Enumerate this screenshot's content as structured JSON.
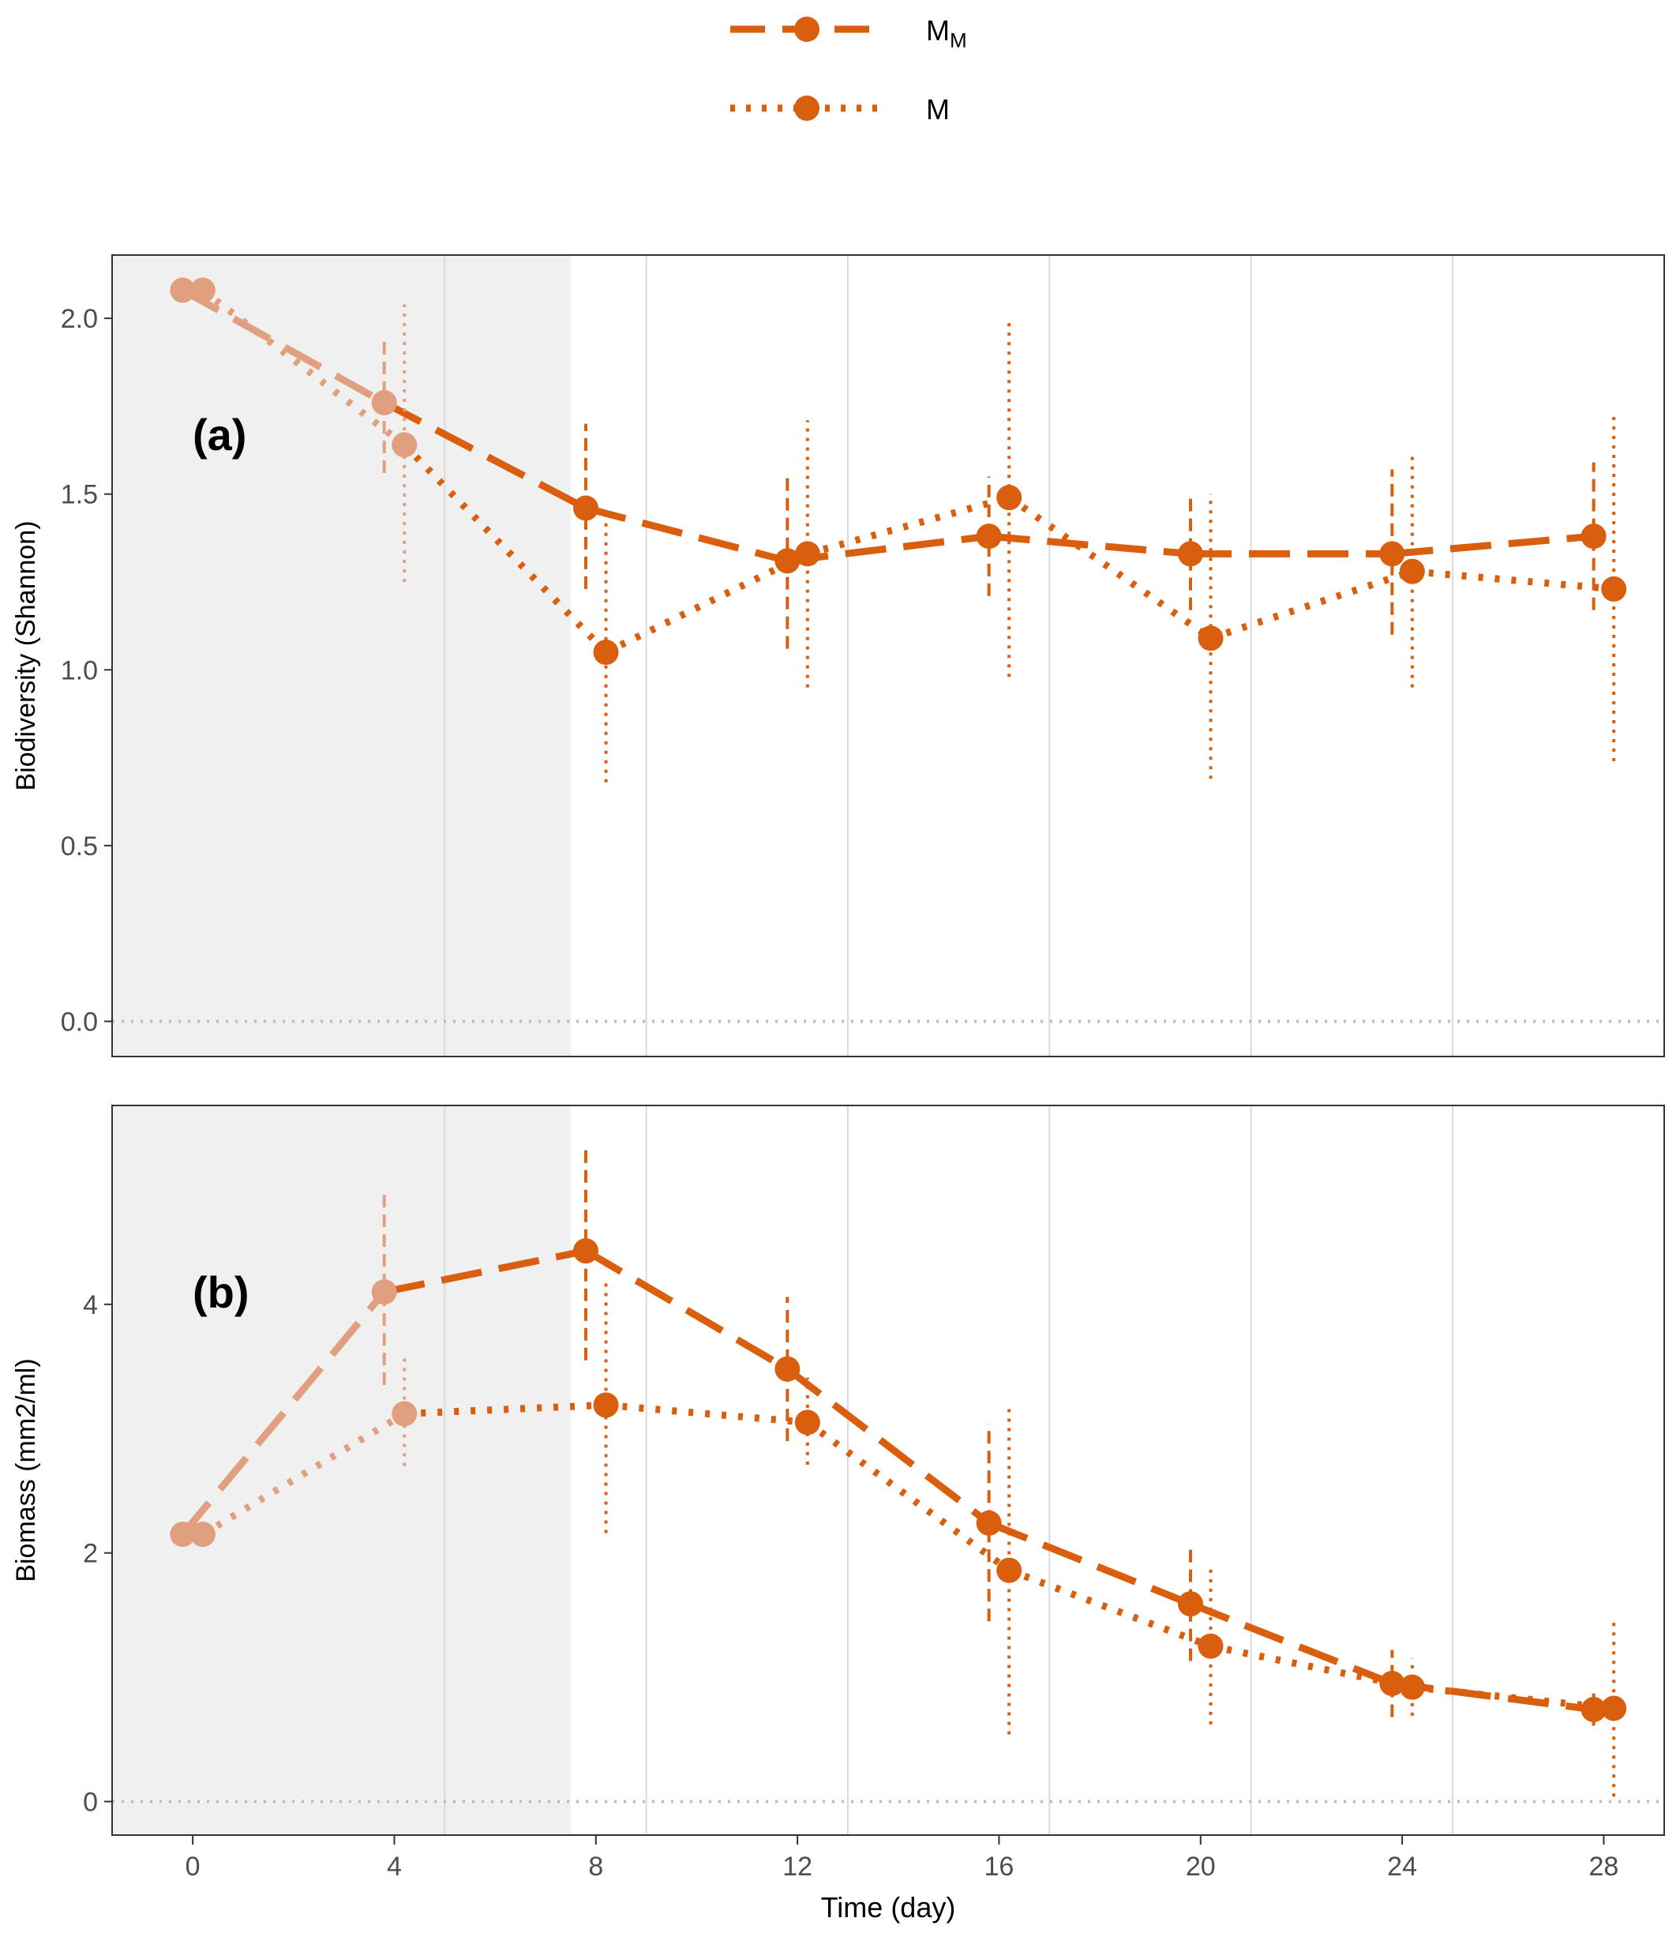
{
  "legend": {
    "items": [
      {
        "label": "M",
        "subscript": "M",
        "style": "dashed"
      },
      {
        "label": "M",
        "subscript": "",
        "style": "dotted"
      }
    ]
  },
  "colors": {
    "series": "#D95F0E",
    "shaded_series": "#E0A07F",
    "shaded_region": "#F0F0F0",
    "grid": "#D9D9D9",
    "zero_line": "#BDBDBD",
    "axis_text": "#4D4D4D"
  },
  "x_axis": {
    "label": "Time (day)",
    "ticks": [
      0,
      4,
      8,
      12,
      16,
      20,
      24,
      28
    ],
    "range": [
      -1.6,
      29.2
    ]
  },
  "chart_data": [
    {
      "type": "line",
      "panel_label": "(a)",
      "ylabel": "Biodiversity (Shannon)",
      "ylim": [
        -0.1,
        2.18
      ],
      "yticks": [
        0.0,
        0.5,
        1.0,
        1.5,
        2.0
      ],
      "ytick_labels": [
        "0.0",
        "0.5",
        "1.0",
        "1.5",
        "2.0"
      ],
      "shaded_x_range": [
        -1.6,
        7.5
      ],
      "vertical_gridlines_x": [
        5,
        9,
        13,
        17,
        21,
        25
      ],
      "x": [
        0,
        4,
        8,
        12,
        16,
        20,
        24,
        28
      ],
      "series": [
        {
          "legend_index": 0,
          "style": "dashed",
          "x_offset": -0.2,
          "values": [
            2.08,
            1.76,
            1.46,
            1.31,
            1.38,
            1.33,
            1.33,
            1.38
          ],
          "err_low": [
            2.08,
            1.56,
            1.23,
            1.06,
            1.21,
            1.17,
            1.1,
            1.17
          ],
          "err_high": [
            2.08,
            1.95,
            1.7,
            1.56,
            1.55,
            1.5,
            1.57,
            1.59
          ]
        },
        {
          "legend_index": 1,
          "style": "dotted",
          "x_offset": 0.2,
          "values": [
            2.08,
            1.64,
            1.05,
            1.33,
            1.49,
            1.09,
            1.28,
            1.23
          ],
          "err_low": [
            2.08,
            1.25,
            0.68,
            0.95,
            0.98,
            0.69,
            0.95,
            0.74
          ],
          "err_high": [
            2.08,
            2.04,
            1.43,
            1.71,
            2.0,
            1.5,
            1.62,
            1.73
          ]
        }
      ]
    },
    {
      "type": "line",
      "panel_label": "(b)",
      "ylabel": "Biomass (mm2/ml)",
      "ylim": [
        -0.27,
        5.6
      ],
      "yticks": [
        0,
        2,
        4
      ],
      "ytick_labels": [
        "0",
        "2",
        "4"
      ],
      "shaded_x_range": [
        -1.6,
        7.5
      ],
      "vertical_gridlines_x": [
        5,
        9,
        13,
        17,
        21,
        25
      ],
      "x": [
        0,
        4,
        8,
        12,
        16,
        20,
        24,
        28
      ],
      "series": [
        {
          "legend_index": 0,
          "style": "dashed",
          "x_offset": -0.2,
          "values": [
            2.15,
            4.1,
            4.43,
            3.48,
            2.24,
            1.59,
            0.95,
            0.74
          ],
          "err_low": [
            2.15,
            3.35,
            3.55,
            2.9,
            1.45,
            1.13,
            0.68,
            0.61
          ],
          "err_high": [
            2.15,
            4.88,
            5.29,
            4.06,
            3.04,
            2.06,
            1.22,
            0.87
          ]
        },
        {
          "legend_index": 1,
          "style": "dotted",
          "x_offset": 0.2,
          "values": [
            2.15,
            3.12,
            3.19,
            3.05,
            1.86,
            1.25,
            0.92,
            0.75
          ],
          "err_low": [
            2.15,
            2.7,
            2.16,
            2.71,
            0.54,
            0.62,
            0.69,
            0.04
          ],
          "err_high": [
            2.15,
            3.57,
            4.2,
            3.41,
            3.2,
            1.88,
            1.15,
            1.46
          ]
        }
      ]
    }
  ]
}
